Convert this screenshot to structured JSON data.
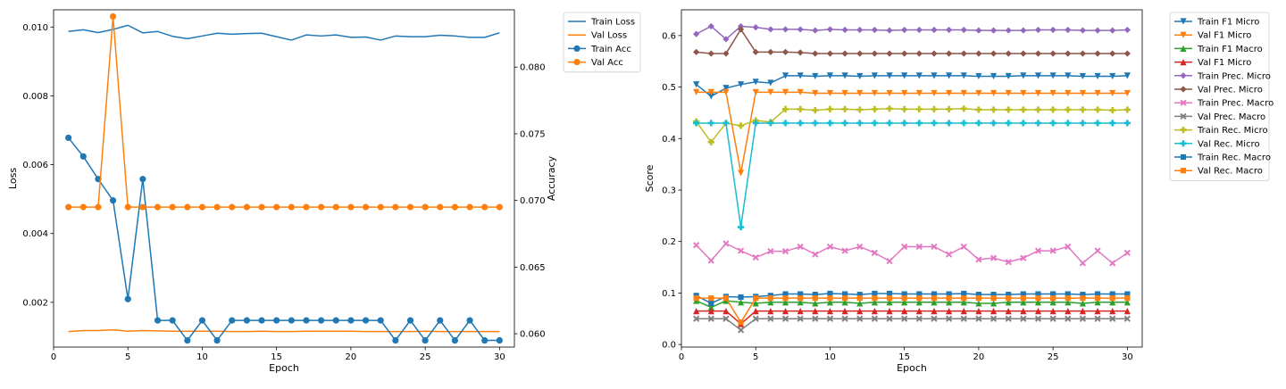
{
  "chart_data": [
    {
      "type": "line",
      "xlabel": "Epoch",
      "ylabel": "Loss",
      "y2label": "Accuracy",
      "xlim": [
        0,
        31
      ],
      "ylim": [
        0.0007,
        0.0105
      ],
      "y2lim": [
        0.059,
        0.0843
      ],
      "xticks": [
        "0",
        "5",
        "10",
        "15",
        "20",
        "25",
        "30"
      ],
      "yticks": [
        "0.002",
        "0.004",
        "0.006",
        "0.008",
        "0.010"
      ],
      "y2ticks": [
        "0.060",
        "0.065",
        "0.070",
        "0.075",
        "0.080"
      ],
      "legend_position": "outside-top-right",
      "grid": false,
      "x": [
        1,
        2,
        3,
        4,
        5,
        6,
        7,
        8,
        9,
        10,
        11,
        12,
        13,
        14,
        15,
        16,
        17,
        18,
        19,
        20,
        21,
        22,
        23,
        24,
        25,
        26,
        27,
        28,
        29,
        30
      ],
      "series": [
        {
          "name": "Train Loss",
          "axis": "left",
          "marker": "none",
          "color": "#1f77b4",
          "values": [
            0.00987,
            0.00992,
            0.00984,
            0.00993,
            0.01005,
            0.00983,
            0.00987,
            0.00973,
            0.00966,
            0.00974,
            0.00982,
            0.00979,
            0.00981,
            0.00982,
            0.00972,
            0.00962,
            0.00977,
            0.00974,
            0.00977,
            0.0097,
            0.00971,
            0.00962,
            0.00974,
            0.00972,
            0.00972,
            0.00976,
            0.00974,
            0.0097,
            0.0097,
            0.00983
          ]
        },
        {
          "name": "Val Loss",
          "axis": "left",
          "marker": "none",
          "color": "#ff7f0e",
          "values": [
            0.00115,
            0.00118,
            0.00118,
            0.0012,
            0.00116,
            0.00118,
            0.00117,
            0.00116,
            0.00116,
            0.00116,
            0.00116,
            0.00115,
            0.00115,
            0.00116,
            0.00115,
            0.00115,
            0.00116,
            0.00116,
            0.00116,
            0.00116,
            0.00115,
            0.00115,
            0.00115,
            0.00115,
            0.00116,
            0.00115,
            0.00115,
            0.00115,
            0.00115,
            0.00115
          ]
        },
        {
          "name": "Train Acc",
          "axis": "right",
          "marker": "o",
          "color": "#1f77b4",
          "values": [
            0.0747,
            0.0733,
            0.0716,
            0.07,
            0.0626,
            0.0716,
            0.061,
            0.061,
            0.0595,
            0.061,
            0.0595,
            0.061,
            0.061,
            0.061,
            0.061,
            0.061,
            0.061,
            0.061,
            0.061,
            0.061,
            0.061,
            0.061,
            0.0595,
            0.061,
            0.0595,
            0.061,
            0.0595,
            0.061,
            0.0595,
            0.0595
          ]
        },
        {
          "name": "Val Acc",
          "axis": "right",
          "marker": "o",
          "color": "#ff7f0e",
          "values": [
            0.0695,
            0.0695,
            0.0695,
            0.0838,
            0.0695,
            0.0695,
            0.0695,
            0.0695,
            0.0695,
            0.0695,
            0.0695,
            0.0695,
            0.0695,
            0.0695,
            0.0695,
            0.0695,
            0.0695,
            0.0695,
            0.0695,
            0.0695,
            0.0695,
            0.0695,
            0.0695,
            0.0695,
            0.0695,
            0.0695,
            0.0695,
            0.0695,
            0.0695,
            0.0695
          ]
        }
      ]
    },
    {
      "type": "line",
      "xlabel": "Epoch",
      "ylabel": "Score",
      "xlim": [
        0,
        31
      ],
      "ylim": [
        -0.005,
        0.65
      ],
      "xticks": [
        "0",
        "5",
        "10",
        "15",
        "20",
        "25",
        "30"
      ],
      "yticks": [
        "0.0",
        "0.1",
        "0.2",
        "0.3",
        "0.4",
        "0.5",
        "0.6"
      ],
      "legend_position": "outside-top-right",
      "grid": false,
      "x": [
        1,
        2,
        3,
        4,
        5,
        6,
        7,
        8,
        9,
        10,
        11,
        12,
        13,
        14,
        15,
        16,
        17,
        18,
        19,
        20,
        21,
        22,
        23,
        24,
        25,
        26,
        27,
        28,
        29,
        30
      ],
      "series": [
        {
          "name": "Train F1 Micro",
          "marker": "v",
          "color": "#1f77b4",
          "values": [
            0.505,
            0.482,
            0.498,
            0.505,
            0.51,
            0.508,
            0.522,
            0.522,
            0.521,
            0.522,
            0.522,
            0.521,
            0.522,
            0.522,
            0.522,
            0.522,
            0.522,
            0.522,
            0.522,
            0.521,
            0.521,
            0.521,
            0.522,
            0.522,
            0.522,
            0.522,
            0.521,
            0.521,
            0.521,
            0.522
          ]
        },
        {
          "name": "Val F1 Micro",
          "marker": "v",
          "color": "#ff7f0e",
          "values": [
            0.49,
            0.49,
            0.49,
            0.333,
            0.49,
            0.49,
            0.49,
            0.49,
            0.488,
            0.488,
            0.488,
            0.488,
            0.488,
            0.488,
            0.488,
            0.488,
            0.488,
            0.488,
            0.488,
            0.488,
            0.488,
            0.488,
            0.488,
            0.488,
            0.488,
            0.488,
            0.488,
            0.488,
            0.488,
            0.488
          ]
        },
        {
          "name": "Train F1 Macro",
          "marker": "^",
          "color": "#2ca02c",
          "values": [
            0.085,
            0.072,
            0.085,
            0.082,
            0.08,
            0.082,
            0.082,
            0.082,
            0.08,
            0.082,
            0.082,
            0.08,
            0.082,
            0.082,
            0.082,
            0.082,
            0.082,
            0.082,
            0.082,
            0.08,
            0.08,
            0.082,
            0.082,
            0.082,
            0.082,
            0.082,
            0.08,
            0.082,
            0.082,
            0.082
          ]
        },
        {
          "name": "Val F1 Micro",
          "marker": "^",
          "color": "#d62728",
          "values": [
            0.065,
            0.065,
            0.065,
            0.04,
            0.065,
            0.065,
            0.065,
            0.065,
            0.065,
            0.065,
            0.065,
            0.065,
            0.065,
            0.065,
            0.065,
            0.065,
            0.065,
            0.065,
            0.065,
            0.065,
            0.065,
            0.065,
            0.065,
            0.065,
            0.065,
            0.065,
            0.065,
            0.065,
            0.065,
            0.065
          ]
        },
        {
          "name": "Train Prec. Micro",
          "marker": "D",
          "color": "#9467bd",
          "values": [
            0.603,
            0.618,
            0.593,
            0.618,
            0.616,
            0.612,
            0.612,
            0.612,
            0.61,
            0.612,
            0.611,
            0.611,
            0.611,
            0.61,
            0.611,
            0.611,
            0.611,
            0.611,
            0.611,
            0.61,
            0.61,
            0.61,
            0.61,
            0.611,
            0.611,
            0.611,
            0.61,
            0.61,
            0.61,
            0.611
          ]
        },
        {
          "name": "Val Prec. Micro",
          "marker": "D",
          "color": "#8c564b",
          "values": [
            0.568,
            0.565,
            0.565,
            0.612,
            0.568,
            0.568,
            0.568,
            0.567,
            0.565,
            0.565,
            0.565,
            0.565,
            0.565,
            0.565,
            0.565,
            0.565,
            0.565,
            0.565,
            0.565,
            0.565,
            0.565,
            0.565,
            0.565,
            0.565,
            0.565,
            0.565,
            0.565,
            0.565,
            0.565,
            0.565
          ]
        },
        {
          "name": "Train Prec. Macro",
          "marker": "X",
          "color": "#e377c2",
          "values": [
            0.193,
            0.163,
            0.196,
            0.182,
            0.169,
            0.181,
            0.181,
            0.19,
            0.175,
            0.19,
            0.182,
            0.19,
            0.178,
            0.162,
            0.19,
            0.19,
            0.19,
            0.175,
            0.19,
            0.165,
            0.168,
            0.16,
            0.168,
            0.182,
            0.182,
            0.19,
            0.158,
            0.182,
            0.158,
            0.178
          ]
        },
        {
          "name": "Val Prec. Macro",
          "marker": "X",
          "color": "#7f7f7f",
          "values": [
            0.05,
            0.05,
            0.05,
            0.028,
            0.05,
            0.05,
            0.05,
            0.05,
            0.05,
            0.05,
            0.05,
            0.05,
            0.05,
            0.05,
            0.05,
            0.05,
            0.05,
            0.05,
            0.05,
            0.05,
            0.05,
            0.05,
            0.05,
            0.05,
            0.05,
            0.05,
            0.05,
            0.05,
            0.05,
            0.05
          ]
        },
        {
          "name": "Train Rec. Micro",
          "marker": "P",
          "color": "#bcbd22",
          "values": [
            0.433,
            0.393,
            0.43,
            0.425,
            0.435,
            0.432,
            0.457,
            0.457,
            0.455,
            0.457,
            0.457,
            0.456,
            0.457,
            0.458,
            0.457,
            0.457,
            0.457,
            0.457,
            0.458,
            0.456,
            0.456,
            0.456,
            0.456,
            0.456,
            0.456,
            0.456,
            0.456,
            0.456,
            0.455,
            0.456
          ]
        },
        {
          "name": "Val Rec. Micro",
          "marker": "P",
          "color": "#17becf",
          "values": [
            0.43,
            0.43,
            0.43,
            0.228,
            0.43,
            0.43,
            0.43,
            0.43,
            0.43,
            0.43,
            0.43,
            0.43,
            0.43,
            0.43,
            0.43,
            0.43,
            0.43,
            0.43,
            0.43,
            0.43,
            0.43,
            0.43,
            0.43,
            0.43,
            0.43,
            0.43,
            0.43,
            0.43,
            0.43,
            0.43
          ]
        },
        {
          "name": "Train Rec. Macro",
          "marker": "s",
          "color": "#1f77b4",
          "values": [
            0.095,
            0.08,
            0.093,
            0.092,
            0.093,
            0.095,
            0.098,
            0.098,
            0.097,
            0.099,
            0.098,
            0.097,
            0.099,
            0.099,
            0.098,
            0.098,
            0.098,
            0.098,
            0.099,
            0.097,
            0.097,
            0.097,
            0.098,
            0.098,
            0.098,
            0.098,
            0.097,
            0.098,
            0.098,
            0.098
          ]
        },
        {
          "name": "Val Rec. Macro",
          "marker": "s",
          "color": "#ff7f0e",
          "values": [
            0.09,
            0.09,
            0.09,
            0.043,
            0.09,
            0.09,
            0.09,
            0.09,
            0.09,
            0.09,
            0.09,
            0.09,
            0.09,
            0.09,
            0.09,
            0.09,
            0.09,
            0.09,
            0.09,
            0.09,
            0.09,
            0.09,
            0.09,
            0.09,
            0.09,
            0.09,
            0.09,
            0.09,
            0.09,
            0.09
          ]
        }
      ]
    }
  ]
}
